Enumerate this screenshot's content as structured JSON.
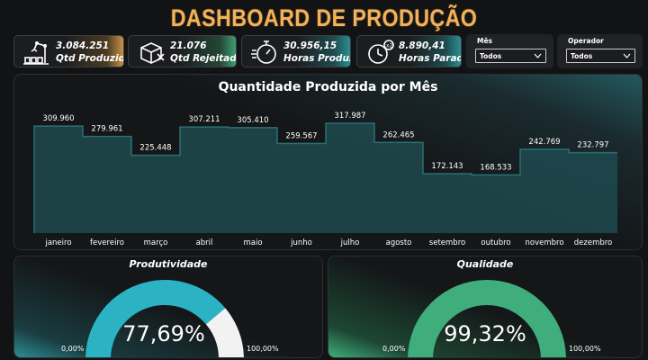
{
  "header": {
    "title": "DASHBOARD DE PRODUÇÃO"
  },
  "kpis": [
    {
      "value": "3.084.251",
      "label": "Qtd Produzida",
      "icon": "robot-arm-icon",
      "accent": "#e0a85a"
    },
    {
      "value": "21.076",
      "label": "Qtd Rejeitada",
      "icon": "box-reject-icon",
      "accent": "#3f9e72"
    },
    {
      "value": "30.956,15",
      "label": "Horas Produzidas",
      "icon": "stopwatch-icon",
      "accent": "#2b8f93"
    },
    {
      "value": "8.890,41",
      "label": "Horas Paradas",
      "icon": "clock-x2-icon",
      "accent": "#2b8f93"
    }
  ],
  "filters": [
    {
      "label": "Mês",
      "value": "Todos"
    },
    {
      "label": "Operador",
      "value": "Todos"
    }
  ],
  "chart_data": {
    "type": "area",
    "title": "Quantidade Produzida por Mês",
    "categories": [
      "janeiro",
      "fevereiro",
      "março",
      "abril",
      "maio",
      "junho",
      "julho",
      "agosto",
      "setembro",
      "outubro",
      "novembro",
      "dezembro"
    ],
    "values": [
      309960,
      279961,
      225448,
      307211,
      305410,
      259567,
      317987,
      262465,
      172143,
      168533,
      242769,
      232797
    ],
    "value_labels": [
      "309.960",
      "279.961",
      "225.448",
      "307.211",
      "305.410",
      "259.567",
      "317.987",
      "262.465",
      "172.143",
      "168.533",
      "242.769",
      "232.797"
    ],
    "step": true,
    "grid": false,
    "fill_color": "#1f4a4f",
    "line_color": "#2b6f74"
  },
  "gauges": [
    {
      "title": "Produtividade",
      "value": 0.7769,
      "value_label": "77,69%",
      "min_label": "0,00%",
      "max_label": "100,00%",
      "fill_color": "#2bb3c3",
      "rest_color": "#f2f2f2"
    },
    {
      "title": "Qualidade",
      "value": 0.9932,
      "value_label": "99,32%",
      "min_label": "0,00%",
      "max_label": "100,00%",
      "fill_color": "#3fae7c",
      "rest_color": "#f2f2f2"
    }
  ]
}
